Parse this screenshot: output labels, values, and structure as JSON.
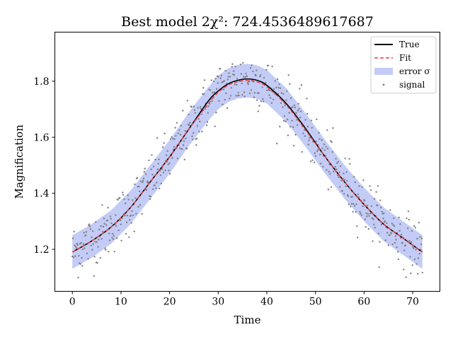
{
  "chart_data": {
    "type": "line",
    "title": "Best model 2χ²: 724.4536489617687",
    "xlabel": "Time",
    "ylabel": "Magnification",
    "xlim": [
      -3.6,
      75.6
    ],
    "ylim": [
      1.05,
      1.975
    ],
    "xticks": [
      0,
      10,
      20,
      30,
      40,
      50,
      60,
      70
    ],
    "yticks": [
      1.2,
      1.4,
      1.6,
      1.8
    ],
    "x": [
      0,
      4,
      8,
      12,
      16,
      20,
      24,
      28,
      30,
      32,
      34,
      36,
      38,
      40,
      44,
      48,
      52,
      56,
      60,
      64,
      68,
      72
    ],
    "legend_position": "top-right",
    "grid": false,
    "series": [
      {
        "name": "True",
        "style": "solid",
        "color": "#000000",
        "values": [
          1.19,
          1.23,
          1.28,
          1.35,
          1.44,
          1.53,
          1.63,
          1.73,
          1.765,
          1.79,
          1.803,
          1.808,
          1.803,
          1.785,
          1.72,
          1.63,
          1.53,
          1.44,
          1.36,
          1.29,
          1.24,
          1.19
        ]
      },
      {
        "name": "Fit",
        "style": "dashed",
        "color": "#e8403f",
        "values": [
          1.19,
          1.23,
          1.28,
          1.35,
          1.44,
          1.53,
          1.63,
          1.72,
          1.76,
          1.785,
          1.798,
          1.802,
          1.797,
          1.78,
          1.715,
          1.625,
          1.53,
          1.44,
          1.36,
          1.29,
          1.24,
          1.19
        ]
      },
      {
        "name": "error σ",
        "style": "band",
        "color": "#c3ccf7",
        "halfwidth": 0.06
      },
      {
        "name": "signal",
        "style": "points",
        "color": "#7f7f7f",
        "noise_sigma": 0.05,
        "count": 600
      }
    ]
  }
}
